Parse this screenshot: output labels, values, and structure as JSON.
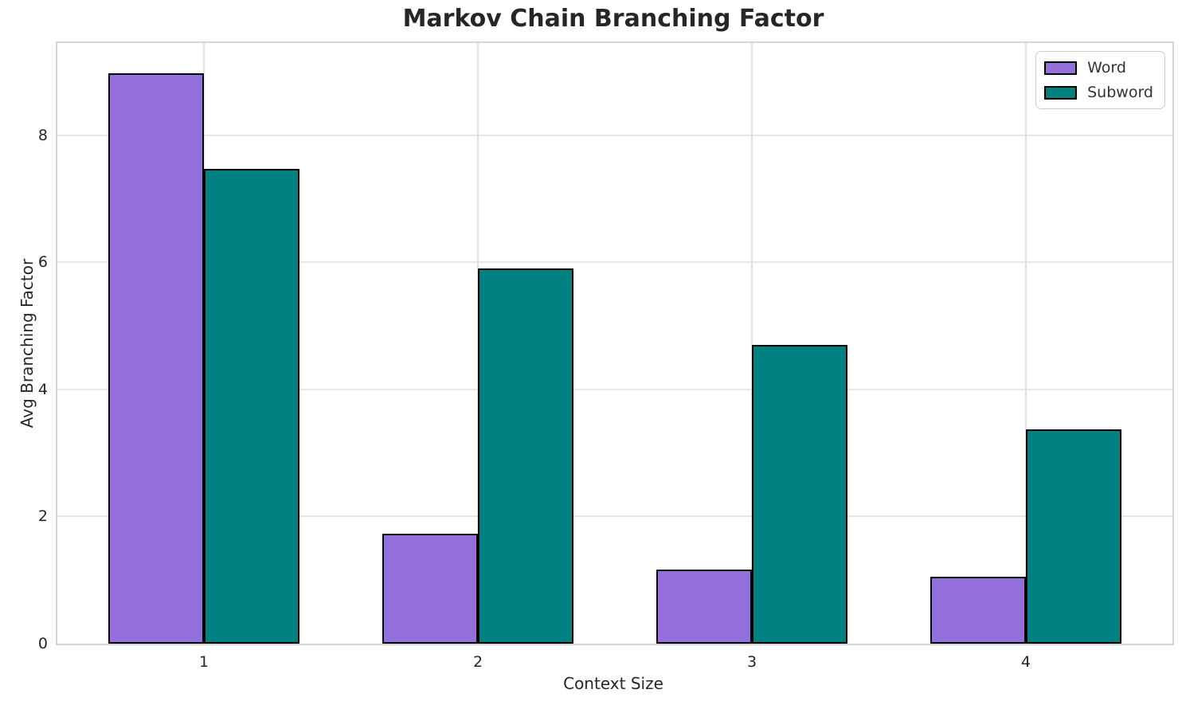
{
  "chart_data": {
    "type": "bar",
    "title": "Markov Chain Branching Factor",
    "xlabel": "Context Size",
    "ylabel": "Avg Branching Factor",
    "categories": [
      "1",
      "2",
      "3",
      "4"
    ],
    "series": [
      {
        "name": "Word",
        "color": "#9370DB",
        "values": [
          8.98,
          1.73,
          1.16,
          1.05
        ]
      },
      {
        "name": "Subword",
        "color": "#008080",
        "values": [
          7.47,
          5.9,
          4.7,
          3.37
        ]
      }
    ],
    "bar_width": 0.35,
    "bar_edge_color": "#000000",
    "xlim": [
      0.465,
      4.535
    ],
    "ylim": [
      0,
      9.45
    ],
    "yticks": [
      0,
      2,
      4,
      6,
      8
    ],
    "grid": "both",
    "legend": {
      "position": "upper right",
      "entries": [
        "Word",
        "Subword"
      ]
    }
  }
}
